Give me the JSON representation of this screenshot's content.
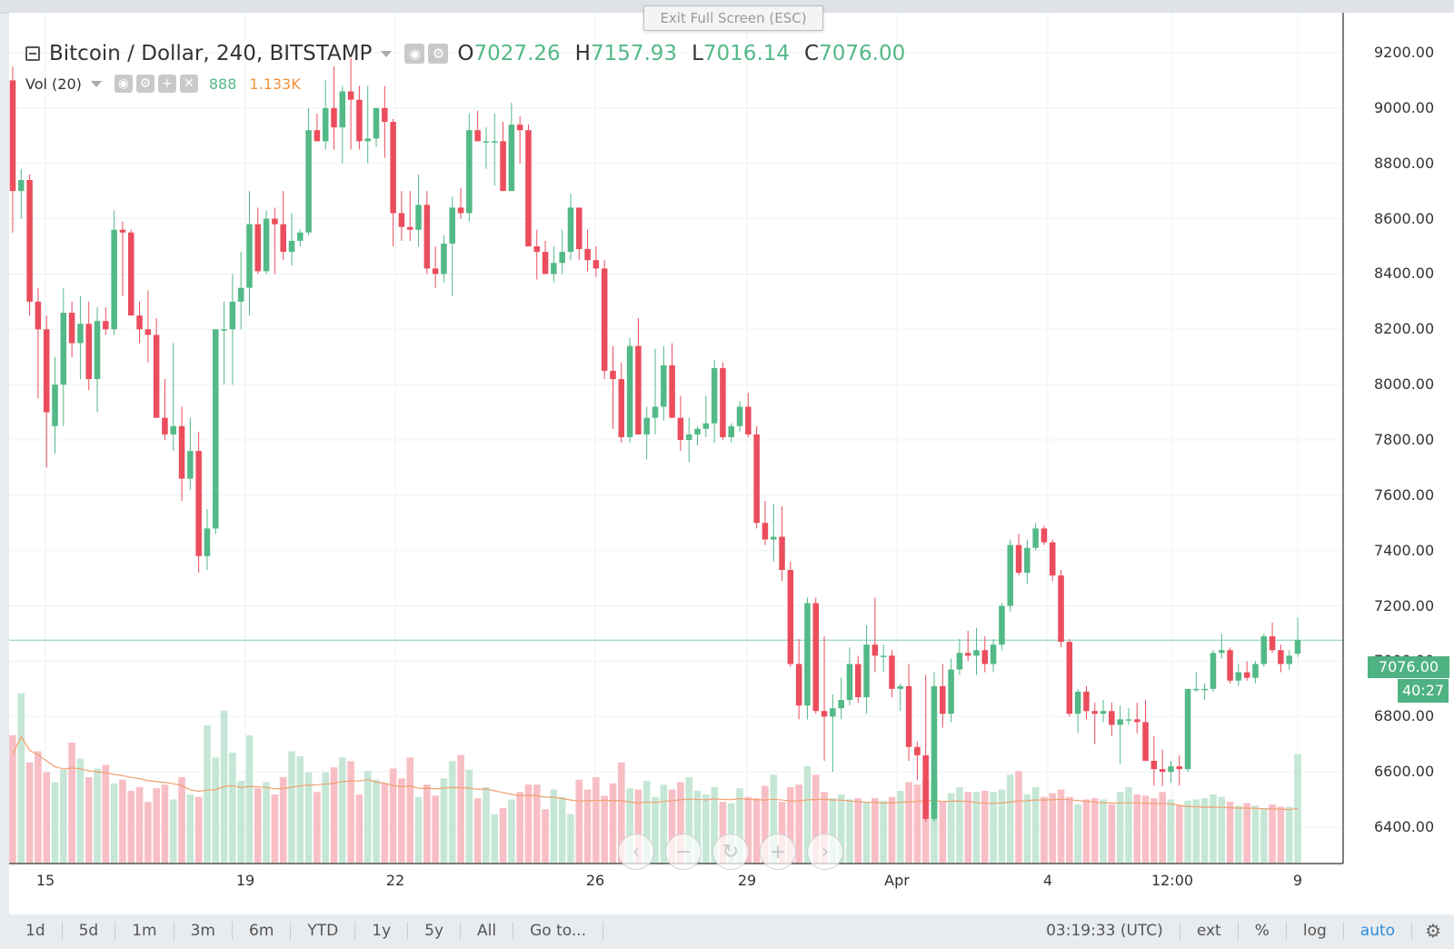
{
  "window": {
    "exit_fullscreen": "Exit Full Screen (ESC)"
  },
  "legend": {
    "symbol": "Bitcoin / Dollar, 240, BITSTAMP",
    "o_label": "O",
    "o_value": "7027.26",
    "h_label": "H",
    "h_value": "7157.93",
    "l_label": "L",
    "l_value": "7016.14",
    "c_label": "C",
    "c_value": "7076.00",
    "vol_label": "Vol (20)",
    "vol_value": "888",
    "vol_ma_value": "1.133K"
  },
  "price_axis": {
    "ticks": [
      "9200.00",
      "9000.00",
      "8800.00",
      "8600.00",
      "8400.00",
      "8200.00",
      "8000.00",
      "7800.00",
      "7600.00",
      "7400.00",
      "7200.00",
      "7000.00",
      "6800.00",
      "6600.00",
      "6400.00"
    ],
    "last_price": "7076.00",
    "countdown": "40:27"
  },
  "time_axis": {
    "ticks": [
      "15",
      "19",
      "22",
      "26",
      "29",
      "Apr",
      "4",
      "12:00",
      "9"
    ]
  },
  "toolbar": {
    "ranges": [
      "1d",
      "5d",
      "1m",
      "3m",
      "6m",
      "YTD",
      "1y",
      "5y",
      "All"
    ],
    "goto": "Go to...",
    "clock": "03:19:33 (UTC)",
    "ext": "ext",
    "percent": "%",
    "log": "log",
    "auto": "auto"
  },
  "colors": {
    "up": "#53b987",
    "down": "#eb4d5c",
    "up_vol": "#c6e7d6",
    "down_vol": "#f7bfc5",
    "vol_ma": "#f0a070",
    "grid": "#eef1f4"
  },
  "icons": {
    "settings": "gear-icon",
    "hide": "eye-icon",
    "add": "plus-icon",
    "remove": "close-icon"
  },
  "chart_data": {
    "type": "candlestick",
    "title": "Bitcoin / Dollar, 240, BITSTAMP",
    "ylim": [
      6250,
      9300
    ],
    "y_ticks": [
      6400,
      6600,
      6800,
      7000,
      7200,
      7400,
      7600,
      7800,
      8000,
      8200,
      8400,
      8600,
      8800,
      9000,
      9200
    ],
    "x_ticks": [
      "15",
      "19",
      "22",
      "26",
      "29",
      "Apr",
      "4",
      "12:00",
      "9"
    ],
    "last_close": 7076.0,
    "ohlc": [
      [
        9100,
        9150,
        8550,
        8700
      ],
      [
        8700,
        8780,
        8600,
        8740
      ],
      [
        8740,
        8760,
        8250,
        8300
      ],
      [
        8300,
        8350,
        7950,
        8200
      ],
      [
        8200,
        8250,
        7700,
        7900
      ],
      [
        7850,
        8100,
        7750,
        8000
      ],
      [
        8000,
        8350,
        7850,
        8260
      ],
      [
        8260,
        8300,
        8100,
        8150
      ],
      [
        8150,
        8320,
        8020,
        8220
      ],
      [
        8220,
        8300,
        7980,
        8020
      ],
      [
        8020,
        8280,
        7900,
        8230
      ],
      [
        8230,
        8280,
        8180,
        8200
      ],
      [
        8200,
        8630,
        8180,
        8560
      ],
      [
        8560,
        8590,
        8320,
        8550
      ],
      [
        8550,
        8560,
        8250,
        8250
      ],
      [
        8250,
        8300,
        8150,
        8200
      ],
      [
        8200,
        8340,
        8080,
        8180
      ],
      [
        8180,
        8240,
        7900,
        7880
      ],
      [
        7880,
        8020,
        7800,
        7820
      ],
      [
        7820,
        8150,
        7760,
        7850
      ],
      [
        7850,
        7920,
        7580,
        7660
      ],
      [
        7660,
        7880,
        7620,
        7760
      ],
      [
        7760,
        7830,
        7320,
        7380
      ],
      [
        7380,
        7550,
        7330,
        7480
      ],
      [
        7480,
        8200,
        7460,
        8200
      ],
      [
        8200,
        8300,
        8000,
        8200
      ],
      [
        8200,
        8400,
        8000,
        8300
      ],
      [
        8300,
        8480,
        8200,
        8350
      ],
      [
        8350,
        8700,
        8250,
        8580
      ],
      [
        8580,
        8640,
        8400,
        8410
      ],
      [
        8410,
        8630,
        8400,
        8600
      ],
      [
        8600,
        8640,
        8400,
        8580
      ],
      [
        8580,
        8700,
        8450,
        8480
      ],
      [
        8480,
        8620,
        8430,
        8520
      ],
      [
        8520,
        8560,
        8500,
        8550
      ],
      [
        8550,
        9000,
        8540,
        8920
      ],
      [
        8920,
        8980,
        8880,
        8880
      ],
      [
        8880,
        9100,
        8850,
        9000
      ],
      [
        9000,
        9150,
        8850,
        8930
      ],
      [
        8930,
        9080,
        8800,
        9060
      ],
      [
        9060,
        9180,
        8850,
        9030
      ],
      [
        9030,
        9080,
        8850,
        8880
      ],
      [
        8880,
        9080,
        8800,
        8890
      ],
      [
        8890,
        9000,
        8860,
        9000
      ],
      [
        9000,
        9080,
        8820,
        8950
      ],
      [
        8950,
        8960,
        8500,
        8620
      ],
      [
        8620,
        8700,
        8520,
        8570
      ],
      [
        8570,
        8700,
        8520,
        8560
      ],
      [
        8560,
        8760,
        8500,
        8650
      ],
      [
        8650,
        8700,
        8400,
        8420
      ],
      [
        8420,
        8500,
        8350,
        8400
      ],
      [
        8400,
        8540,
        8370,
        8510
      ],
      [
        8510,
        8680,
        8320,
        8640
      ],
      [
        8640,
        8710,
        8600,
        8620
      ],
      [
        8620,
        8980,
        8590,
        8920
      ],
      [
        8920,
        8990,
        8880,
        8880
      ],
      [
        8880,
        8930,
        8780,
        8880
      ],
      [
        8880,
        8980,
        8720,
        8880
      ],
      [
        8880,
        8950,
        8700,
        8700
      ],
      [
        8700,
        9020,
        8700,
        8940
      ],
      [
        8940,
        8970,
        8800,
        8920
      ],
      [
        8920,
        8940,
        8500,
        8500
      ],
      [
        8500,
        8560,
        8380,
        8480
      ],
      [
        8480,
        8520,
        8400,
        8400
      ],
      [
        8400,
        8500,
        8370,
        8440
      ],
      [
        8440,
        8560,
        8400,
        8480
      ],
      [
        8480,
        8690,
        8450,
        8640
      ],
      [
        8640,
        8640,
        8450,
        8490
      ],
      [
        8490,
        8560,
        8410,
        8450
      ],
      [
        8450,
        8500,
        8390,
        8420
      ],
      [
        8420,
        8450,
        8020,
        8050
      ],
      [
        8050,
        8140,
        7840,
        8020
      ],
      [
        8020,
        8080,
        7790,
        7810
      ],
      [
        7810,
        8170,
        7790,
        8140
      ],
      [
        8140,
        8240,
        7820,
        7820
      ],
      [
        7820,
        7920,
        7730,
        7880
      ],
      [
        7880,
        8130,
        7820,
        7920
      ],
      [
        7920,
        8140,
        7870,
        8070
      ],
      [
        8070,
        8150,
        7880,
        7880
      ],
      [
        7880,
        7960,
        7760,
        7800
      ],
      [
        7800,
        7880,
        7720,
        7820
      ],
      [
        7820,
        7850,
        7780,
        7840
      ],
      [
        7840,
        7960,
        7810,
        7860
      ],
      [
        7860,
        8090,
        7790,
        8060
      ],
      [
        8060,
        8080,
        7800,
        7810
      ],
      [
        7810,
        7860,
        7790,
        7850
      ],
      [
        7850,
        7940,
        7830,
        7920
      ],
      [
        7920,
        7970,
        7810,
        7820
      ],
      [
        7820,
        7850,
        7480,
        7500
      ],
      [
        7500,
        7580,
        7420,
        7440
      ],
      [
        7440,
        7570,
        7360,
        7450
      ],
      [
        7450,
        7560,
        7290,
        7330
      ],
      [
        7330,
        7360,
        6980,
        6990
      ],
      [
        6990,
        7080,
        6790,
        6840
      ],
      [
        6840,
        7230,
        6790,
        7210
      ],
      [
        7210,
        7230,
        6810,
        6820
      ],
      [
        6820,
        7090,
        6640,
        6800
      ],
      [
        6800,
        6880,
        6600,
        6830
      ],
      [
        6830,
        6940,
        6790,
        6860
      ],
      [
        6860,
        7050,
        6840,
        6990
      ],
      [
        6990,
        7020,
        6850,
        6870
      ],
      [
        6870,
        7130,
        6810,
        7060
      ],
      [
        7060,
        7230,
        6960,
        7020
      ],
      [
        7020,
        7060,
        6960,
        7020
      ],
      [
        7020,
        7040,
        6870,
        6900
      ],
      [
        6900,
        6920,
        6820,
        6910
      ],
      [
        6910,
        6990,
        6640,
        6690
      ],
      [
        6690,
        6710,
        6570,
        6660
      ],
      [
        6660,
        6950,
        6420,
        6430
      ],
      [
        6430,
        6960,
        6420,
        6910
      ],
      [
        6910,
        6990,
        6760,
        6810
      ],
      [
        6810,
        7010,
        6780,
        6970
      ],
      [
        6970,
        7080,
        6950,
        7030
      ],
      [
        7030,
        7110,
        7000,
        7020
      ],
      [
        7020,
        7120,
        6950,
        7040
      ],
      [
        7040,
        7090,
        6960,
        6990
      ],
      [
        6990,
        7080,
        6960,
        7060
      ],
      [
        7060,
        7210,
        7040,
        7200
      ],
      [
        7200,
        7440,
        7180,
        7420
      ],
      [
        7420,
        7460,
        7310,
        7320
      ],
      [
        7320,
        7440,
        7280,
        7410
      ],
      [
        7410,
        7500,
        7400,
        7480
      ],
      [
        7480,
        7490,
        7420,
        7430
      ],
      [
        7430,
        7440,
        7290,
        7310
      ],
      [
        7310,
        7330,
        7050,
        7070
      ],
      [
        7070,
        7080,
        6800,
        6810
      ],
      [
        6810,
        6900,
        6740,
        6890
      ],
      [
        6890,
        6910,
        6790,
        6820
      ],
      [
        6820,
        6850,
        6700,
        6810
      ],
      [
        6810,
        6860,
        6780,
        6820
      ],
      [
        6820,
        6850,
        6730,
        6770
      ],
      [
        6770,
        6840,
        6630,
        6790
      ],
      [
        6790,
        6830,
        6770,
        6790
      ],
      [
        6790,
        6850,
        6740,
        6780
      ],
      [
        6780,
        6860,
        6640,
        6640
      ],
      [
        6640,
        6730,
        6550,
        6610
      ],
      [
        6610,
        6680,
        6550,
        6600
      ],
      [
        6600,
        6640,
        6560,
        6620
      ],
      [
        6620,
        6660,
        6550,
        6610
      ],
      [
        6610,
        6900,
        6600,
        6900
      ],
      [
        6900,
        6960,
        6890,
        6900
      ],
      [
        6900,
        6920,
        6860,
        6900
      ],
      [
        6900,
        7040,
        6890,
        7030
      ],
      [
        7030,
        7100,
        7010,
        7040
      ],
      [
        7040,
        7050,
        6920,
        6930
      ],
      [
        6930,
        6990,
        6910,
        6960
      ],
      [
        6960,
        7000,
        6930,
        6940
      ],
      [
        6940,
        7000,
        6920,
        6990
      ],
      [
        6990,
        7100,
        6980,
        7090
      ],
      [
        7090,
        7140,
        7030,
        7040
      ],
      [
        7040,
        7060,
        6960,
        6990
      ],
      [
        6990,
        7040,
        6970,
        7020
      ],
      [
        7027.26,
        7157.93,
        7016.14,
        7076
      ]
    ],
    "volume": [
      1040,
      1380,
      820,
      910,
      740,
      660,
      760,
      980,
      850,
      700,
      770,
      800,
      650,
      680,
      590,
      620,
      500,
      610,
      640,
      520,
      700,
      560,
      540,
      1120,
      860,
      1240,
      900,
      670,
      1040,
      610,
      660,
      560,
      700,
      910,
      870,
      740,
      580,
      740,
      780,
      860,
      830,
      560,
      750,
      680,
      650,
      770,
      690,
      860,
      540,
      640,
      550,
      690,
      830,
      880,
      760,
      530,
      620,
      400,
      450,
      520,
      580,
      640,
      640,
      440,
      600,
      540,
      400,
      680,
      600,
      700,
      550,
      650,
      820,
      610,
      600,
      670,
      540,
      640,
      600,
      660,
      700,
      590,
      560,
      620,
      500,
      490,
      610,
      540,
      530,
      630,
      720,
      500,
      620,
      640,
      790,
      720,
      580,
      530,
      560,
      520,
      530,
      500,
      530,
      510,
      540,
      590,
      660,
      640,
      680,
      690,
      500,
      570,
      620,
      580,
      580,
      590,
      580,
      600,
      720,
      750,
      560,
      620,
      540,
      570,
      600,
      540,
      480,
      520,
      530,
      520,
      480,
      580,
      620,
      560,
      550,
      530,
      580,
      520,
      470,
      510,
      520,
      530,
      560,
      540,
      500,
      470,
      490,
      470,
      450,
      480,
      460,
      460,
      888
    ],
    "volume_ma": [
      1133
    ],
    "volume_ma_period": 20
  }
}
